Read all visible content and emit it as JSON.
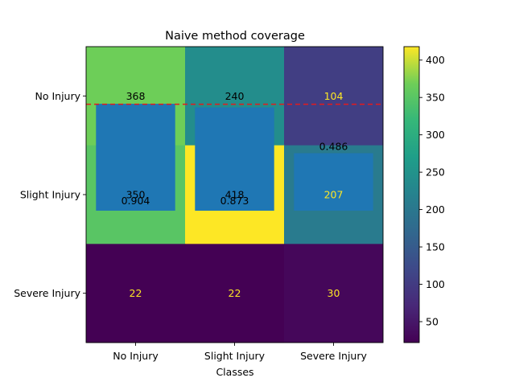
{
  "chart_data": {
    "type": "heatmap",
    "title": "Naive method coverage",
    "xlabel": "Classes",
    "ylabel": "",
    "x_categories": [
      "No Injury",
      "Slight Injury",
      "Severe Injury"
    ],
    "y_categories": [
      "No Injury",
      "Slight Injury",
      "Severe Injury"
    ],
    "matrix": [
      [
        368,
        240,
        104
      ],
      [
        350,
        418,
        207
      ],
      [
        22,
        22,
        30
      ]
    ],
    "colorbar": {
      "colormap": "viridis",
      "vmin": 22,
      "vmax": 418,
      "ticks": [
        "50",
        "100",
        "150",
        "200",
        "250",
        "300",
        "350",
        "400"
      ]
    },
    "overlay_bars": {
      "color": "#1f77b4",
      "values": [
        0.904,
        0.873,
        0.486
      ],
      "labels": [
        "0.904",
        "0.873",
        "0.486"
      ]
    },
    "reference_line": {
      "style": "dashed",
      "color": "#e41a1c",
      "value": 0.9
    }
  }
}
